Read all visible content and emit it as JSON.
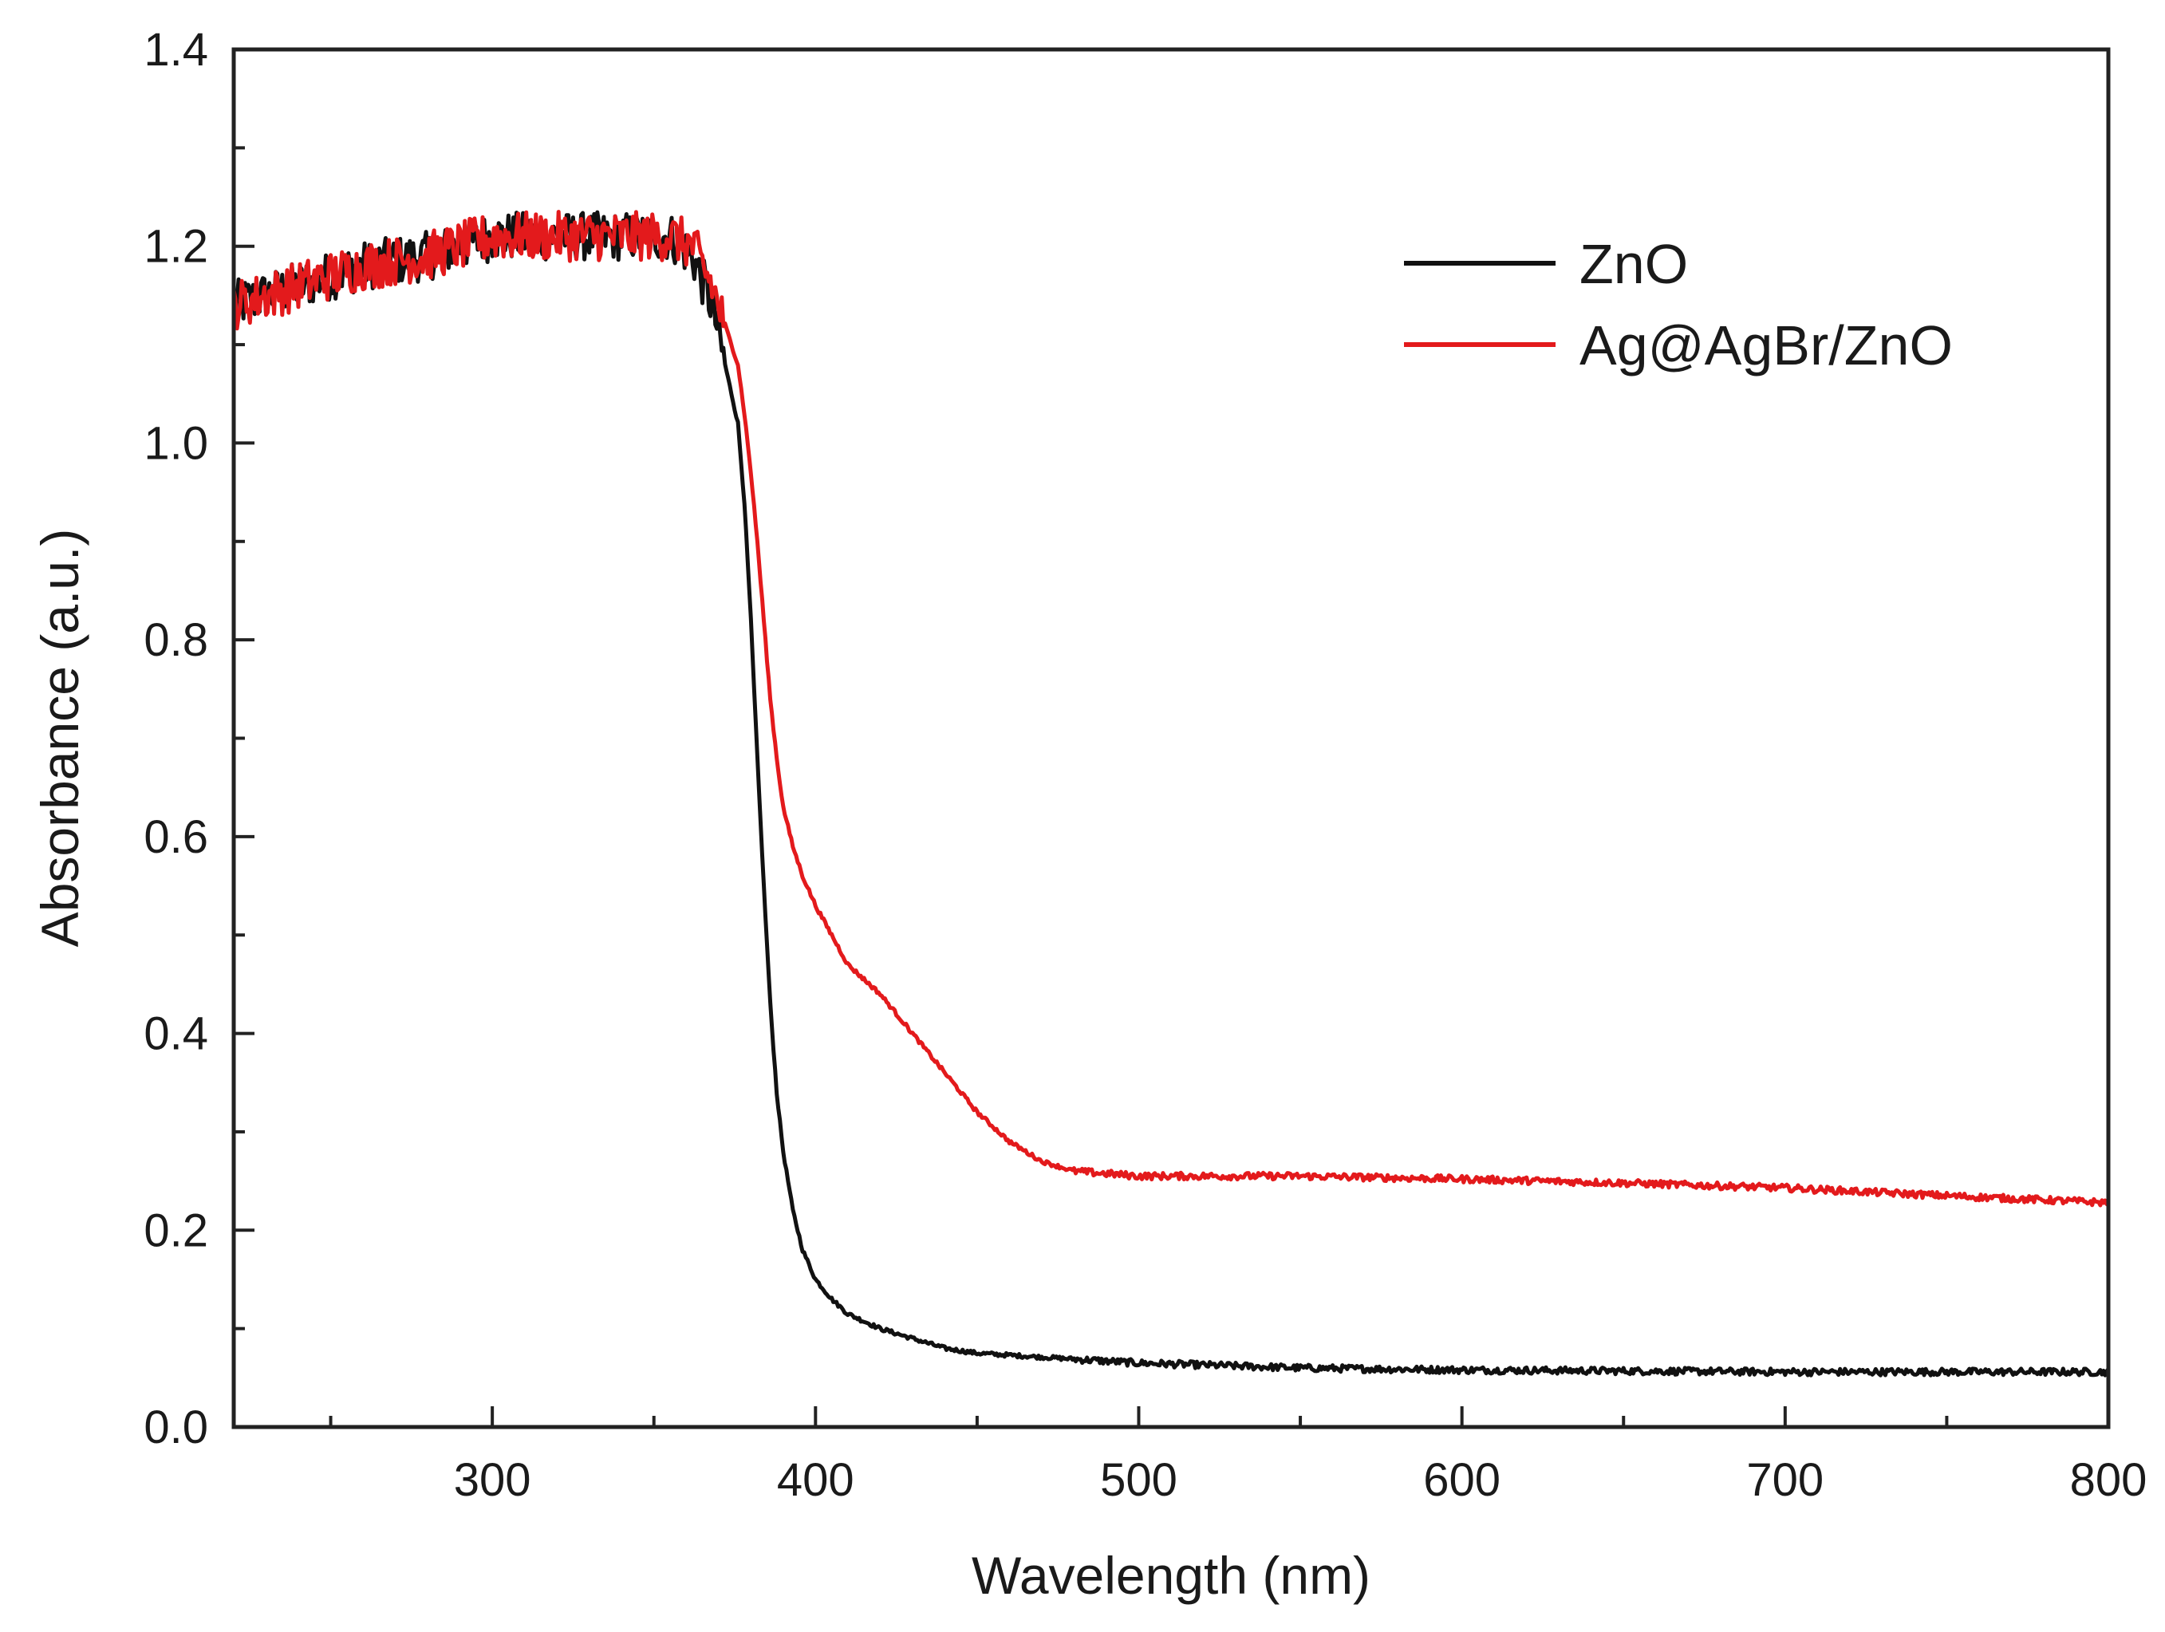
{
  "chart_data": {
    "type": "line",
    "title": "",
    "xlabel": "Wavelength (nm)",
    "ylabel": "Absorbance (a.u.)",
    "xlim": [
      220,
      800
    ],
    "ylim": [
      0.0,
      1.4
    ],
    "xticks": [
      300,
      400,
      500,
      600,
      700,
      800
    ],
    "xtick_labels": [
      "300",
      "400",
      "500",
      "600",
      "700",
      "800"
    ],
    "xminor_step": 50,
    "yticks": [
      0.0,
      0.2,
      0.4,
      0.6,
      0.8,
      1.0,
      1.2,
      1.4
    ],
    "ytick_labels": [
      "0.0",
      "0.2",
      "0.4",
      "0.6",
      "0.8",
      "1.0",
      "1.2",
      "1.4"
    ],
    "yminor_step": 0.1,
    "grid": false,
    "legend_position": "top-right",
    "series": [
      {
        "name": "ZnO",
        "color": "#111111",
        "x": [
          220,
          240,
          260,
          280,
          300,
          320,
          340,
          355,
          362,
          368,
          372,
          376,
          378,
          380,
          382,
          384,
          386,
          388,
          390,
          393,
          396,
          400,
          405,
          410,
          420,
          430,
          440,
          450,
          475,
          500,
          550,
          600,
          650,
          700,
          750,
          800
        ],
        "y": [
          1.14,
          1.16,
          1.18,
          1.19,
          1.21,
          1.21,
          1.21,
          1.21,
          1.19,
          1.14,
          1.08,
          1.02,
          0.94,
          0.82,
          0.68,
          0.55,
          0.43,
          0.34,
          0.28,
          0.22,
          0.18,
          0.15,
          0.13,
          0.115,
          0.1,
          0.09,
          0.08,
          0.075,
          0.07,
          0.065,
          0.06,
          0.058,
          0.057,
          0.056,
          0.056,
          0.056
        ]
      },
      {
        "name": "Ag@AgBr/ZnO",
        "color": "#e31a1c",
        "x": [
          220,
          240,
          260,
          280,
          300,
          320,
          340,
          355,
          362,
          368,
          372,
          376,
          378,
          380,
          382,
          384,
          386,
          388,
          390,
          393,
          396,
          400,
          405,
          410,
          420,
          430,
          440,
          450,
          460,
          470,
          480,
          500,
          550,
          600,
          650,
          700,
          750,
          800
        ],
        "y": [
          1.14,
          1.16,
          1.18,
          1.19,
          1.21,
          1.21,
          1.21,
          1.21,
          1.2,
          1.16,
          1.12,
          1.08,
          1.03,
          0.97,
          0.9,
          0.82,
          0.74,
          0.68,
          0.63,
          0.59,
          0.56,
          0.53,
          0.5,
          0.47,
          0.44,
          0.4,
          0.36,
          0.32,
          0.29,
          0.27,
          0.26,
          0.255,
          0.255,
          0.252,
          0.248,
          0.243,
          0.235,
          0.228
        ]
      }
    ]
  }
}
